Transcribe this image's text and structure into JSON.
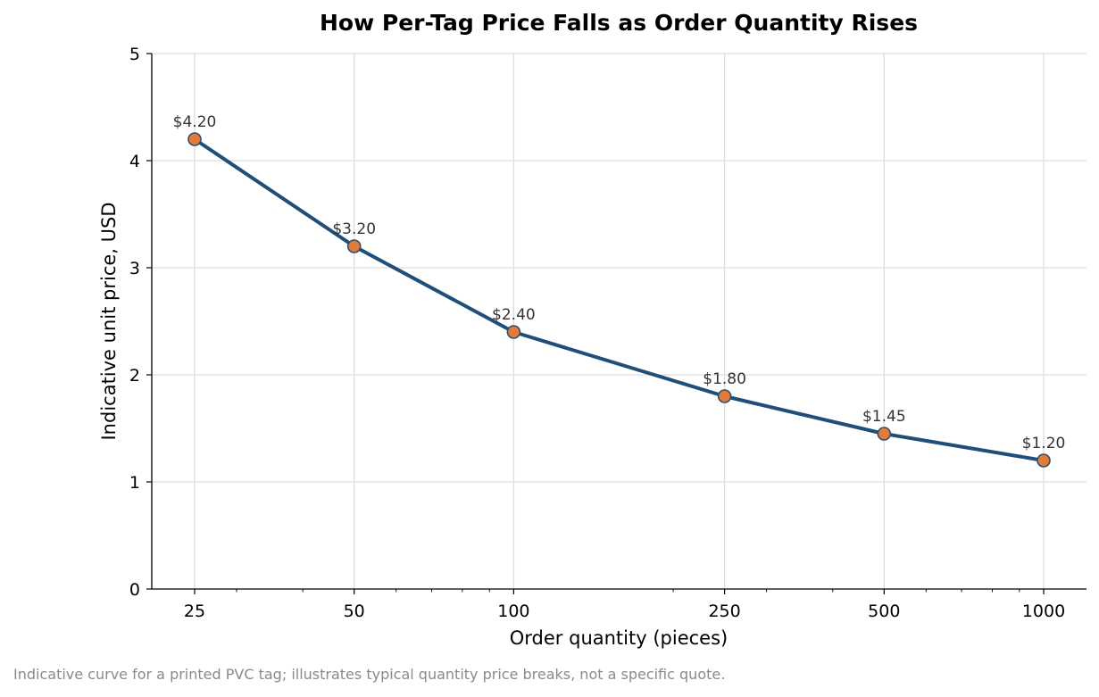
{
  "chart_data": {
    "type": "line",
    "title": "How Per-Tag Price Falls as Order Quantity Rises",
    "xlabel": "Order quantity (pieces)",
    "ylabel": "Indicative unit price, USD",
    "x_scale": "log",
    "x": [
      25,
      50,
      100,
      250,
      500,
      1000
    ],
    "x_tick_labels": [
      "25",
      "50",
      "100",
      "250",
      "500",
      "1000"
    ],
    "y_ticks": [
      0,
      1,
      2,
      3,
      4,
      5
    ],
    "ylim": [
      0,
      5
    ],
    "grid": true,
    "series": [
      {
        "values": [
          4.2,
          3.2,
          2.4,
          1.8,
          1.45,
          1.2
        ],
        "labels": [
          "$4.20",
          "$3.20",
          "$2.40",
          "$1.80",
          "$1.45",
          "$1.20"
        ],
        "line_color": "#1f4e79",
        "marker_color": "#e07b39",
        "marker_edge": "#2f4f6f"
      }
    ]
  },
  "caption": "Indicative curve for a printed PVC tag; illustrates typical quantity price breaks, not a specific quote."
}
